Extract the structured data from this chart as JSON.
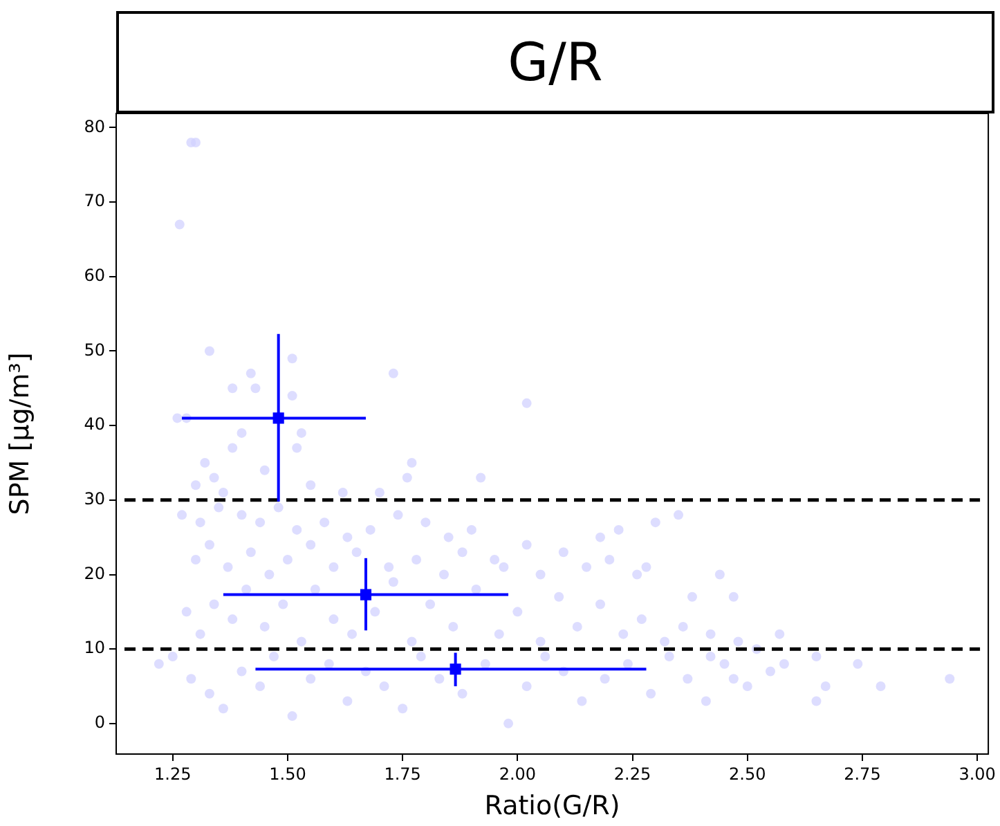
{
  "chart_data": {
    "type": "scatter",
    "title": "G/R",
    "xlabel": "Ratio(G/R)",
    "ylabel": "SPM [μg/m³]",
    "xlim": [
      1.127,
      3.024
    ],
    "ylim": [
      -4.1,
      81.9
    ],
    "xticks": [
      1.25,
      {
        "value": 1.5,
        "label": "1.50"
      },
      1.75,
      {
        "value": 2,
        "label": "2.00"
      },
      2.25,
      {
        "value": 2.5,
        "label": "2.50"
      },
      2.75,
      {
        "value": 3,
        "label": "3.00"
      }
    ],
    "yticks": [
      0,
      10,
      20,
      30,
      40,
      50,
      60,
      70,
      80
    ],
    "grid": false,
    "legend": false,
    "ref_lines": [
      {
        "axis": "y",
        "value": 30,
        "color": "#000000",
        "line_style": "dashed"
      },
      {
        "axis": "y",
        "value": 10,
        "color": "#000000",
        "line_style": "dashed"
      }
    ],
    "series": [
      {
        "color": "#d0d0ff",
        "marker": "circle",
        "x": [
          1.29,
          1.3,
          1.265,
          1.33,
          1.51,
          1.42,
          1.43,
          1.38,
          1.73,
          1.51,
          2.02,
          1.26,
          1.28,
          1.4,
          1.38,
          1.52,
          1.53,
          1.32,
          1.34,
          1.45,
          1.77,
          1.76,
          1.92,
          1.62,
          1.55,
          1.7,
          1.3,
          1.36,
          1.27,
          1.31,
          1.35,
          1.4,
          1.44,
          1.48,
          1.52,
          1.58,
          1.63,
          1.68,
          1.74,
          1.8,
          1.85,
          1.9,
          1.95,
          2.02,
          2.1,
          2.18,
          2.22,
          2.3,
          2.35,
          2.26,
          1.3,
          1.33,
          1.37,
          1.42,
          1.46,
          1.5,
          1.55,
          1.6,
          1.65,
          1.72,
          1.78,
          1.84,
          1.88,
          1.97,
          2.05,
          2.15,
          2.2,
          2.28,
          2.38,
          2.47,
          2.44,
          1.28,
          1.31,
          1.34,
          1.38,
          1.41,
          1.45,
          1.49,
          1.53,
          1.56,
          1.6,
          1.64,
          1.69,
          1.73,
          1.77,
          1.81,
          1.86,
          1.91,
          1.96,
          2.0,
          2.05,
          2.09,
          2.13,
          2.18,
          2.23,
          2.27,
          2.32,
          2.36,
          2.42,
          2.48,
          2.57,
          2.52,
          1.22,
          1.25,
          1.29,
          1.33,
          1.36,
          1.4,
          1.44,
          1.47,
          1.51,
          1.55,
          1.59,
          1.63,
          1.67,
          1.71,
          1.75,
          1.79,
          1.83,
          1.88,
          1.93,
          1.98,
          2.02,
          2.06,
          2.1,
          2.14,
          2.19,
          2.24,
          2.29,
          2.33,
          2.37,
          2.41,
          2.45,
          2.5,
          2.55,
          2.58,
          2.65,
          2.67,
          2.65,
          2.74,
          2.79,
          2.94,
          2.42,
          2.47
        ],
        "values": [
          78,
          78,
          67,
          50,
          49,
          47,
          45,
          45,
          47,
          44,
          43,
          41,
          41,
          39,
          37,
          37,
          39,
          35,
          33,
          34,
          35,
          33,
          33,
          31,
          32,
          31,
          32,
          31,
          28,
          27,
          29,
          28,
          27,
          29,
          26,
          27,
          25,
          26,
          28,
          27,
          25,
          26,
          22,
          24,
          23,
          25,
          26,
          27,
          28,
          20,
          22,
          24,
          21,
          23,
          20,
          22,
          24,
          21,
          23,
          21,
          22,
          20,
          23,
          21,
          20,
          21,
          22,
          21,
          17,
          17,
          20,
          15,
          12,
          16,
          14,
          18,
          13,
          16,
          11,
          18,
          14,
          12,
          15,
          19,
          11,
          16,
          13,
          18,
          12,
          15,
          11,
          17,
          13,
          16,
          12,
          14,
          11,
          13,
          12,
          11,
          12,
          10,
          8,
          9,
          6,
          4,
          2,
          7,
          5,
          9,
          1,
          6,
          8,
          3,
          7,
          5,
          2,
          9,
          6,
          4,
          8,
          0,
          5,
          9,
          7,
          3,
          6,
          8,
          4,
          9,
          6,
          3,
          8,
          5,
          7,
          8,
          9,
          5,
          3,
          8,
          5,
          6,
          9,
          6
        ]
      },
      {
        "color": "#0000ff",
        "marker": "square",
        "x": [
          1.48,
          1.67,
          1.865
        ],
        "values": [
          41,
          17.3,
          7.3
        ],
        "errors": [
          [
            29.8,
            52.3
          ],
          [
            12.5,
            22.2
          ],
          [
            5,
            9.5
          ]
        ],
        "xerrors": [
          [
            1.27,
            1.67
          ],
          [
            1.36,
            1.98
          ],
          [
            1.43,
            2.28
          ]
        ]
      }
    ]
  }
}
